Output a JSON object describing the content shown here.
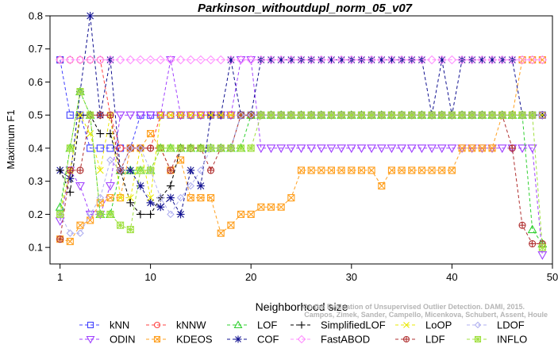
{
  "chart_data": {
    "type": "line",
    "title": "Parkinson_withoutdupl_norm_05_v07",
    "xlabel": "Neighborhood size",
    "ylabel": "Maximum F1",
    "xlim": [
      0,
      50
    ],
    "ylim": [
      0.05,
      0.8
    ],
    "xticks": [
      "1",
      "10",
      "20",
      "30",
      "40",
      "50"
    ],
    "yticks": [
      "0.1",
      "0.2",
      "0.3",
      "0.4",
      "0.5",
      "0.6",
      "0.7",
      "0.8"
    ],
    "grid": false,
    "legend_position": "bottom",
    "watermark": [
      "Campos, Zimek, Sander, Campello, Micenkova, Schubert, Assent, Houle",
      "On the Evaluation of Unsupervised Outlier Detection. DAMI, 2015."
    ],
    "series": [
      {
        "name": "kNN",
        "color": "#4040ff",
        "marker": "square",
        "x": [
          1,
          2,
          3,
          4,
          5,
          6,
          7,
          8,
          9,
          10,
          11,
          12,
          13,
          14,
          15,
          16,
          17,
          18,
          19,
          20,
          21,
          22,
          23,
          24,
          25,
          26,
          27,
          28,
          29,
          30,
          31,
          32,
          33,
          34,
          35,
          36,
          37,
          38,
          39,
          40,
          41,
          42,
          43,
          44,
          45,
          46,
          47,
          48,
          49
        ],
        "y": [
          0.667,
          0.5,
          0.5,
          0.4,
          0.4,
          0.4,
          0.4,
          0.4,
          0.5,
          0.5,
          0.5,
          0.5,
          0.5,
          0.5,
          0.5,
          0.5,
          0.5,
          0.5,
          0.5,
          0.5,
          0.5,
          0.5,
          0.5,
          0.5,
          0.5,
          0.5,
          0.5,
          0.5,
          0.5,
          0.5,
          0.5,
          0.5,
          0.5,
          0.5,
          0.5,
          0.5,
          0.5,
          0.5,
          0.5,
          0.5,
          0.5,
          0.5,
          0.5,
          0.5,
          0.5,
          0.5,
          0.5,
          0.5,
          0.5
        ]
      },
      {
        "name": "ODIN",
        "color": "#a040ff",
        "marker": "triangle-down",
        "x": [
          1,
          2,
          3,
          4,
          5,
          6,
          7,
          8,
          9,
          10,
          11,
          12,
          13,
          14,
          15,
          16,
          17,
          18,
          19,
          20,
          21,
          22,
          23,
          24,
          25,
          26,
          27,
          28,
          29,
          30,
          31,
          32,
          33,
          34,
          35,
          36,
          37,
          38,
          39,
          40,
          41,
          42,
          43,
          44,
          45,
          46,
          47,
          48,
          49
        ],
        "y": [
          0.18,
          0.333,
          0.286,
          0.2,
          0.2,
          0.286,
          0.5,
          0.5,
          0.5,
          0.5,
          0.5,
          0.667,
          0.5,
          0.5,
          0.5,
          0.5,
          0.5,
          0.5,
          0.667,
          0.667,
          0.4,
          0.4,
          0.4,
          0.4,
          0.4,
          0.4,
          0.4,
          0.4,
          0.4,
          0.4,
          0.4,
          0.4,
          0.4,
          0.4,
          0.4,
          0.4,
          0.4,
          0.4,
          0.4,
          0.4,
          0.4,
          0.4,
          0.4,
          0.4,
          0.4,
          0.4,
          0.4,
          0.4,
          0.077
        ]
      },
      {
        "name": "kNNW",
        "color": "#ff4040",
        "marker": "circle",
        "x": [
          1,
          2,
          3,
          4,
          5,
          6,
          7,
          8,
          9,
          10,
          11,
          12,
          13,
          14,
          15,
          16,
          17,
          18,
          19,
          20,
          21,
          22,
          23,
          24,
          25,
          26,
          27,
          28,
          29,
          30,
          31,
          32,
          33,
          34,
          35,
          36,
          37,
          38,
          39,
          40,
          41,
          42,
          43,
          44,
          45,
          46,
          47,
          48,
          49
        ],
        "y": [
          0.667,
          0.667,
          0.667,
          0.667,
          0.667,
          0.5,
          0.4,
          0.4,
          0.4,
          0.4,
          0.5,
          0.5,
          0.5,
          0.5,
          0.5,
          0.5,
          0.5,
          0.5,
          0.5,
          0.5,
          0.5,
          0.5,
          0.5,
          0.5,
          0.5,
          0.5,
          0.5,
          0.5,
          0.5,
          0.5,
          0.5,
          0.5,
          0.5,
          0.5,
          0.5,
          0.5,
          0.5,
          0.5,
          0.5,
          0.5,
          0.5,
          0.5,
          0.5,
          0.5,
          0.5,
          0.5,
          0.5,
          0.5,
          0.5
        ]
      },
      {
        "name": "KDEOS",
        "color": "#ffa020",
        "marker": "square-x",
        "x": [
          1,
          2,
          3,
          4,
          5,
          6,
          7,
          8,
          9,
          10,
          11,
          12,
          13,
          14,
          15,
          16,
          17,
          18,
          19,
          20,
          21,
          22,
          23,
          24,
          25,
          26,
          27,
          28,
          29,
          30,
          31,
          32,
          33,
          34,
          35,
          36,
          37,
          38,
          39,
          40,
          41,
          42,
          43,
          44,
          45,
          46,
          47,
          48,
          49
        ],
        "y": [
          0.125,
          0.118,
          0.167,
          0.182,
          0.235,
          0.25,
          0.25,
          0.4,
          0.4,
          0.444,
          0.4,
          0.333,
          0.364,
          0.25,
          0.25,
          0.25,
          0.143,
          0.167,
          0.2,
          0.2,
          0.222,
          0.222,
          0.222,
          0.25,
          0.333,
          0.333,
          0.333,
          0.333,
          0.333,
          0.333,
          0.333,
          0.333,
          0.286,
          0.333,
          0.333,
          0.333,
          0.333,
          0.333,
          0.333,
          0.333,
          0.4,
          0.4,
          0.4,
          0.4,
          0.5,
          0.5,
          0.667,
          0.667,
          0.667
        ]
      },
      {
        "name": "LOF",
        "color": "#30d030",
        "marker": "triangle-up",
        "x": [
          1,
          2,
          3,
          4,
          5,
          6,
          7,
          8,
          9,
          10,
          11,
          12,
          13,
          14,
          15,
          16,
          17,
          18,
          19,
          20,
          21,
          22,
          23,
          24,
          25,
          26,
          27,
          28,
          29,
          30,
          31,
          32,
          33,
          34,
          35,
          36,
          37,
          38,
          39,
          40,
          41,
          42,
          43,
          44,
          45,
          46,
          47,
          48,
          49
        ],
        "y": [
          0.222,
          0.4,
          0.571,
          0.5,
          0.2,
          0.2,
          0.333,
          0.333,
          0.333,
          0.333,
          0.4,
          0.4,
          0.4,
          0.4,
          0.4,
          0.4,
          0.4,
          0.4,
          0.4,
          0.5,
          0.5,
          0.5,
          0.5,
          0.5,
          0.5,
          0.5,
          0.5,
          0.5,
          0.5,
          0.5,
          0.5,
          0.5,
          0.5,
          0.5,
          0.5,
          0.5,
          0.5,
          0.5,
          0.5,
          0.5,
          0.5,
          0.5,
          0.5,
          0.5,
          0.5,
          0.5,
          0.5,
          0.154,
          0.111
        ]
      },
      {
        "name": "COF",
        "color": "#101090",
        "marker": "asterisk",
        "x": [
          1,
          2,
          3,
          4,
          5,
          6,
          7,
          8,
          9,
          10,
          11,
          12,
          13,
          14,
          15,
          16,
          17,
          18,
          19,
          20,
          21,
          22,
          23,
          24,
          25,
          26,
          27,
          28,
          29,
          30,
          31,
          32,
          33,
          34,
          35,
          36,
          37,
          38,
          39,
          40,
          41,
          42,
          43,
          44,
          45,
          46,
          47,
          48,
          49
        ],
        "y": [
          0.333,
          0.308,
          0.571,
          0.8,
          0.5,
          0.667,
          0.333,
          0.333,
          0.286,
          0.235,
          0.222,
          0.25,
          0.2,
          0.333,
          0.286,
          0.5,
          0.5,
          0.667,
          0.5,
          0.5,
          0.667,
          0.667,
          0.667,
          0.667,
          0.667,
          0.667,
          0.667,
          0.667,
          0.667,
          0.667,
          0.667,
          0.667,
          0.667,
          0.667,
          0.667,
          0.667,
          0.667,
          0.5,
          0.667,
          0.5,
          0.667,
          0.667,
          0.667,
          0.667,
          0.667,
          0.667,
          0.5,
          0.5,
          0.5
        ]
      },
      {
        "name": "SimplifiedLOF",
        "color": "#000000",
        "marker": "plus",
        "x": [
          1,
          2,
          3,
          4,
          5,
          6,
          7,
          8,
          9,
          10,
          11,
          12,
          13,
          14,
          15,
          16,
          17,
          18,
          19,
          20,
          21,
          22,
          23,
          24,
          25,
          26,
          27,
          28,
          29,
          30,
          31,
          32,
          33,
          34,
          35,
          36,
          37,
          38,
          39,
          40,
          41,
          42,
          43,
          44,
          45,
          46,
          47,
          48,
          49
        ],
        "y": [
          0.333,
          0.267,
          0.5,
          0.5,
          0.444,
          0.444,
          0.333,
          0.235,
          0.2,
          0.2,
          0.25,
          0.286,
          0.4,
          0.4,
          0.4,
          0.4,
          0.4,
          0.4,
          0.5,
          0.5,
          0.5,
          0.5,
          0.5,
          0.5,
          0.5,
          0.5,
          0.5,
          0.5,
          0.5,
          0.5,
          0.5,
          0.5,
          0.5,
          0.5,
          0.5,
          0.5,
          0.5,
          0.5,
          0.5,
          0.5,
          0.5,
          0.5,
          0.5,
          0.5,
          0.5,
          0.5,
          0.5,
          0.5,
          0.5
        ]
      },
      {
        "name": "FastABOD",
        "color": "#ff90ff",
        "marker": "diamond",
        "x": [
          1,
          2,
          3,
          4,
          5,
          6,
          7,
          8,
          9,
          10,
          11,
          12,
          13,
          14,
          15,
          16,
          17,
          18,
          19,
          20,
          21,
          22,
          23,
          24,
          25,
          26,
          27,
          28,
          29,
          30,
          31,
          32,
          33,
          34,
          35,
          36,
          37,
          38,
          39,
          40,
          41,
          42,
          43,
          44,
          45,
          46,
          47,
          48,
          49
        ],
        "y": [
          0.667,
          0.667,
          0.667,
          0.667,
          0.667,
          0.667,
          0.667,
          0.667,
          0.667,
          0.667,
          0.667,
          0.667,
          0.667,
          0.667,
          0.667,
          0.667,
          0.667,
          0.667,
          0.667,
          0.667,
          0.667,
          0.667,
          0.667,
          0.667,
          0.667,
          0.667,
          0.667,
          0.667,
          0.667,
          0.667,
          0.667,
          0.667,
          0.667,
          0.667,
          0.667,
          0.667,
          0.667,
          0.667,
          0.667,
          0.667,
          0.667,
          0.667,
          0.667,
          0.667,
          0.667,
          0.667,
          0.667,
          0.667,
          0.667
        ]
      },
      {
        "name": "LoOP",
        "color": "#e8e800",
        "marker": "x",
        "x": [
          1,
          2,
          3,
          4,
          5,
          6,
          7,
          8,
          9,
          10,
          11,
          12,
          13,
          14,
          15,
          16,
          17,
          18,
          19,
          20,
          21,
          22,
          23,
          24,
          25,
          26,
          27,
          28,
          29,
          30,
          31,
          32,
          33,
          34,
          35,
          36,
          37,
          38,
          39,
          40,
          41,
          42,
          43,
          44,
          45,
          46,
          47,
          48,
          49
        ],
        "y": [
          0.2,
          0.333,
          0.5,
          0.444,
          0.333,
          0.5,
          0.25,
          0.25,
          0.4,
          0.25,
          0.5,
          0.5,
          0.5,
          0.5,
          0.5,
          0.5,
          0.5,
          0.5,
          0.5,
          0.5,
          0.5,
          0.5,
          0.5,
          0.5,
          0.5,
          0.5,
          0.5,
          0.5,
          0.5,
          0.5,
          0.5,
          0.5,
          0.5,
          0.5,
          0.5,
          0.5,
          0.5,
          0.5,
          0.5,
          0.5,
          0.5,
          0.5,
          0.5,
          0.5,
          0.5,
          0.5,
          0.5,
          0.5,
          0.5
        ]
      },
      {
        "name": "LDF",
        "color": "#b03030",
        "marker": "circle-plus",
        "x": [
          1,
          2,
          3,
          4,
          5,
          6,
          7,
          8,
          9,
          10,
          11,
          12,
          13,
          14,
          15,
          16,
          17,
          18,
          19,
          20,
          21,
          22,
          23,
          24,
          25,
          26,
          27,
          28,
          29,
          30,
          31,
          32,
          33,
          34,
          35,
          36,
          37,
          38,
          39,
          40,
          41,
          42,
          43,
          44,
          45,
          46,
          47,
          48,
          49
        ],
        "y": [
          0.125,
          0.333,
          0.333,
          0.5,
          0.5,
          0.5,
          0.333,
          0.4,
          0.4,
          0.4,
          0.4,
          0.333,
          0.4,
          0.4,
          0.4,
          0.333,
          0.4,
          0.4,
          0.5,
          0.5,
          0.5,
          0.5,
          0.5,
          0.5,
          0.5,
          0.5,
          0.5,
          0.5,
          0.5,
          0.5,
          0.5,
          0.5,
          0.5,
          0.5,
          0.5,
          0.5,
          0.5,
          0.5,
          0.5,
          0.5,
          0.5,
          0.5,
          0.5,
          0.5,
          0.5,
          0.4,
          0.167,
          0.111,
          0.111
        ]
      },
      {
        "name": "LDOF",
        "color": "#b0b0f0",
        "marker": "diamond-small",
        "x": [
          1,
          2,
          3,
          4,
          5,
          6,
          7,
          8,
          9,
          10,
          11,
          12,
          13,
          14,
          15,
          16,
          17,
          18,
          19,
          20,
          21,
          22,
          23,
          24,
          25,
          26,
          27,
          28,
          29,
          30,
          31,
          32,
          33,
          34,
          35,
          36,
          37,
          38,
          39,
          40,
          41,
          42,
          43,
          44,
          45,
          46,
          47,
          48,
          49
        ],
        "y": [
          0.2,
          0.143,
          0.143,
          0.2,
          0.25,
          0.364,
          0.333,
          0.4,
          0.4,
          0.333,
          0.25,
          0.2,
          0.25,
          0.286,
          0.333,
          0.4,
          0.4,
          0.4,
          0.5,
          0.5,
          0.5,
          0.5,
          0.5,
          0.5,
          0.5,
          0.5,
          0.5,
          0.5,
          0.5,
          0.5,
          0.5,
          0.5,
          0.5,
          0.5,
          0.5,
          0.5,
          0.5,
          0.5,
          0.5,
          0.5,
          0.5,
          0.5,
          0.5,
          0.5,
          0.5,
          0.5,
          0.5,
          0.5,
          0.5
        ]
      },
      {
        "name": "INFLO",
        "color": "#a0e040",
        "marker": "star-box",
        "x": [
          1,
          2,
          3,
          4,
          5,
          6,
          7,
          8,
          9,
          10,
          11,
          12,
          13,
          14,
          15,
          16,
          17,
          18,
          19,
          20,
          21,
          22,
          23,
          24,
          25,
          26,
          27,
          28,
          29,
          30,
          31,
          32,
          33,
          34,
          35,
          36,
          37,
          38,
          39,
          40,
          41,
          42,
          43,
          44,
          45,
          46,
          47,
          48,
          49
        ],
        "y": [
          0.2,
          0.4,
          0.571,
          0.5,
          0.2,
          0.2,
          0.167,
          0.154,
          0.333,
          0.333,
          0.4,
          0.4,
          0.4,
          0.4,
          0.4,
          0.4,
          0.4,
          0.4,
          0.4,
          0.4,
          0.5,
          0.5,
          0.5,
          0.5,
          0.5,
          0.5,
          0.5,
          0.5,
          0.5,
          0.5,
          0.5,
          0.5,
          0.5,
          0.5,
          0.5,
          0.5,
          0.5,
          0.5,
          0.5,
          0.5,
          0.5,
          0.5,
          0.5,
          0.5,
          0.5,
          0.5,
          0.5,
          0.5,
          0.1
        ]
      }
    ]
  }
}
